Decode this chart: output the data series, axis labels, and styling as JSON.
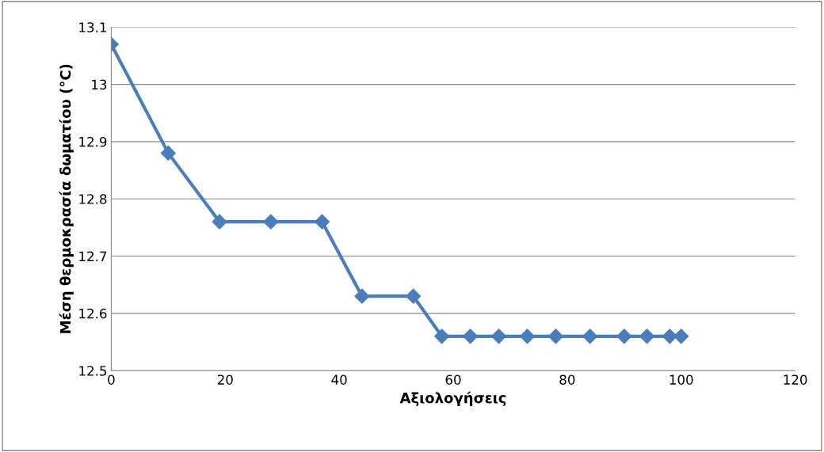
{
  "chart_data": {
    "type": "line",
    "xlabel": "Αξιολογήσεις",
    "ylabel": "Μέση θερμοκρασία δωματίου (°C)",
    "xlim": [
      0,
      120
    ],
    "xticks": [
      0,
      20,
      40,
      60,
      80,
      100,
      120
    ],
    "ylim": [
      12.5,
      13.1
    ],
    "yticks": [
      12.5,
      12.6,
      12.7,
      12.8,
      12.9,
      13,
      13.1
    ],
    "grid": "y",
    "marker": "diamond",
    "line_style": "solid",
    "legend": false,
    "series": [
      {
        "color": "#4a7ebb",
        "x": [
          0,
          10,
          19,
          28,
          37,
          44,
          53,
          58,
          63,
          68,
          73,
          78,
          84,
          90,
          94,
          98,
          100
        ],
        "values": [
          13.07,
          12.88,
          12.76,
          12.76,
          12.76,
          12.63,
          12.63,
          12.56,
          12.56,
          12.56,
          12.56,
          12.56,
          12.56,
          12.56,
          12.56,
          12.56,
          12.56
        ]
      }
    ]
  }
}
